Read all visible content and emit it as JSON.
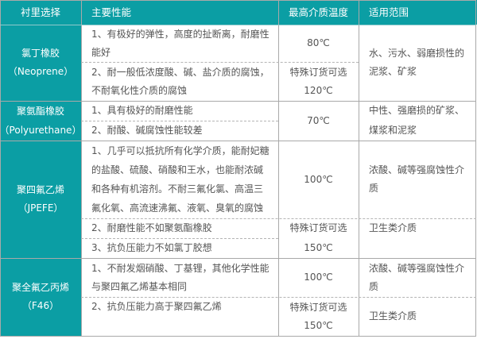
{
  "header": {
    "lining": "衬里选择",
    "properties": "主要性能",
    "max_temp": "最高介质温度",
    "application": "适用范围"
  },
  "rows": [
    {
      "name": "氯丁橡胶",
      "name_en": "（Neoprene）",
      "props": [
        "1、有极好的弹性，高度的扯断离，耐磨性能好",
        "2、耐一般低浓度酸、碱、盐介质的腐蚀，不耐氧化性介质的腐蚀"
      ],
      "temp": [
        "80℃",
        "特殊订货可选",
        "120℃"
      ],
      "application": "水、污水、弱磨损性的泥浆、矿浆"
    },
    {
      "name": "聚氨酯橡胶",
      "name_en": "（Polyurethane）",
      "props": [
        "1、具有极好的耐磨性能",
        "2、耐酸、碱腐蚀性能较差"
      ],
      "temp": [
        "70℃"
      ],
      "application": "中性、强磨损的矿浆、煤浆和泥浆"
    },
    {
      "name": "聚四氟乙烯",
      "name_en": "（JPEFE）",
      "props": [
        "1、几乎可以抵抗所有化学介质，能耐妃糖的盐酸、硫酸、硝酸和王水，也能耐浓碱和各种有机溶剂。不耐三氟化氯、高温三氟化氧、高流速沸氟、液氧、臭氧的腐蚀",
        "2、耐磨性能不如聚氨酯橡胶",
        "3、抗负压能力不如氯丁胶想"
      ],
      "temp": [
        "100℃",
        "特殊订货可选",
        "150℃"
      ],
      "application": [
        "浓酸、碱等强腐蚀性介质",
        "卫生类介质"
      ]
    },
    {
      "name": "聚全氟乙丙烯",
      "name_en": "（F46）",
      "props": [
        "1、不耐发烟硝酸、丁基锂，其他化学性能与聚四氟乙烯基本相同",
        "2、抗负压能力高于聚四氟乙烯"
      ],
      "temp": [
        "100℃",
        "特殊订货可选",
        "150℃"
      ],
      "application": [
        "浓酸、碱等强腐蚀性介质",
        "卫生类介质"
      ]
    }
  ],
  "colors": {
    "header_bg": "#0b9ea4",
    "header_text": "#ffffff",
    "body_text": "#555555"
  }
}
